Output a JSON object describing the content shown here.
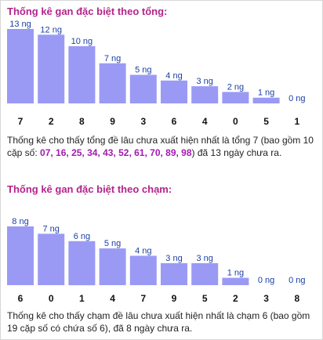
{
  "sections": {
    "sum": {
      "title": "Thống kê gan đặc biệt theo tổng:",
      "desc_before": "Thống kê cho thấy tổng đề lâu chưa xuất hiện nhất là tổng 7 (bao gồm 10 cặp số: ",
      "numbers": "07, 16, 25, 34, 43, 52, 61, 70, 89, 98",
      "desc_after": ") đã 13 ngày chưa ra."
    },
    "touch": {
      "title": "Thống kê gan đặc biệt theo chạm:",
      "desc": "Thống kê cho thấy chạm đề lâu chưa xuất hiện nhất là chạm 6 (bao gồm 19 cặp số có chứa số 6), đã 8 ngày chưa ra."
    }
  },
  "colors": {
    "bar": "#9a9af5",
    "value_label": "#1a3fa6",
    "title": "#b4248c",
    "highlight": "#a21bb0"
  },
  "chart_data": [
    {
      "type": "bar",
      "categories": [
        "7",
        "2",
        "8",
        "9",
        "3",
        "6",
        "4",
        "0",
        "5",
        "1"
      ],
      "values": [
        13,
        12,
        10,
        7,
        5,
        4,
        3,
        2,
        1,
        0
      ],
      "labels": [
        "13 ng",
        "12 ng",
        "10 ng",
        "7 ng",
        "5 ng",
        "4 ng",
        "3 ng",
        "2 ng",
        "1 ng",
        "0 ng"
      ],
      "title": "Thống kê gan đặc biệt theo tổng:",
      "xlabel": "",
      "ylabel": "",
      "ylim": [
        0,
        13
      ],
      "grid": false
    },
    {
      "type": "bar",
      "categories": [
        "6",
        "0",
        "1",
        "4",
        "7",
        "9",
        "5",
        "2",
        "3",
        "8"
      ],
      "values": [
        8,
        7,
        6,
        5,
        4,
        3,
        3,
        1,
        0,
        0
      ],
      "labels": [
        "8 ng",
        "7 ng",
        "6 ng",
        "5 ng",
        "4 ng",
        "3 ng",
        "3 ng",
        "1 ng",
        "0 ng",
        "0 ng"
      ],
      "title": "Thống kê gan đặc biệt theo chạm:",
      "xlabel": "",
      "ylabel": "",
      "ylim": [
        0,
        8
      ],
      "grid": false
    }
  ]
}
